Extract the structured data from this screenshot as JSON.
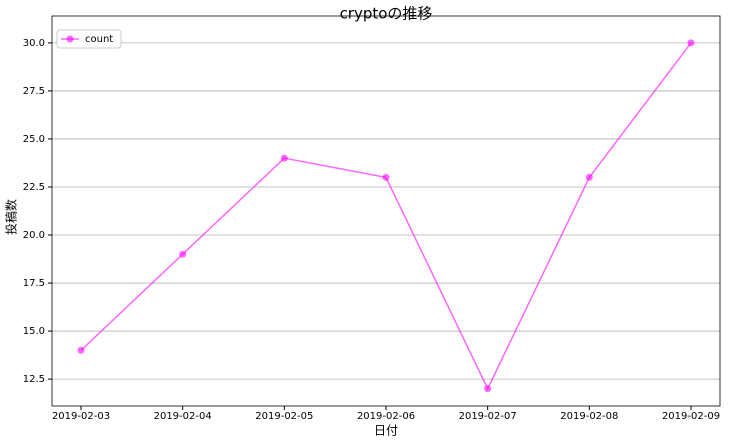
{
  "chart_data": {
    "type": "line",
    "title": "cryptoの推移",
    "xlabel": "日付",
    "ylabel": "投稿数",
    "x": [
      "2019-02-03",
      "2019-02-04",
      "2019-02-05",
      "2019-02-06",
      "2019-02-07",
      "2019-02-08",
      "2019-02-09"
    ],
    "series": [
      {
        "name": "count",
        "color": "#ff00ff",
        "values": [
          14,
          19,
          24,
          23,
          12,
          23,
          30
        ]
      }
    ],
    "ylim": [
      11.1,
      31.4
    ],
    "yticks": [
      12.5,
      {
        "value": 15,
        "label": "15.0"
      },
      17.5,
      {
        "value": 20,
        "label": "20.0"
      },
      22.5,
      {
        "value": 25,
        "label": "25.0"
      },
      27.5,
      {
        "value": 30,
        "label": "30.0"
      }
    ],
    "grid": true,
    "legend": "upper-left"
  }
}
